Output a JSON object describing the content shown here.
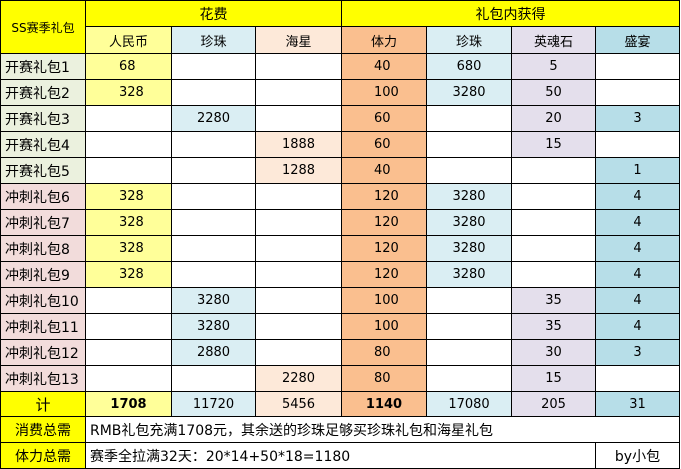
{
  "sheet": {
    "corner_label": "SS赛季礼包",
    "groups": {
      "spend": "花费",
      "rewards": "礼包内获得"
    },
    "columns": [
      "人民币",
      "珍珠",
      "海星",
      "体力",
      "珍珠",
      "英魂石",
      "盛宴"
    ],
    "rows": [
      {
        "name": "开赛礼包1",
        "cells": [
          "68",
          "",
          "",
          "40",
          "680",
          "5",
          ""
        ]
      },
      {
        "name": "开赛礼包2",
        "cells": [
          "328",
          "",
          "",
          "100",
          "3280",
          "50",
          ""
        ]
      },
      {
        "name": "开赛礼包3",
        "cells": [
          "",
          "2280",
          "",
          "60",
          "",
          "20",
          "3"
        ]
      },
      {
        "name": "开赛礼包4",
        "cells": [
          "",
          "",
          "1888",
          "60",
          "",
          "15",
          ""
        ]
      },
      {
        "name": "开赛礼包5",
        "cells": [
          "",
          "",
          "1288",
          "40",
          "",
          "",
          "1"
        ]
      },
      {
        "name": "冲刺礼包6",
        "cells": [
          "328",
          "",
          "",
          "120",
          "3280",
          "",
          "4"
        ]
      },
      {
        "name": "冲刺礼包7",
        "cells": [
          "328",
          "",
          "",
          "120",
          "3280",
          "",
          "4"
        ]
      },
      {
        "name": "冲刺礼包8",
        "cells": [
          "328",
          "",
          "",
          "120",
          "3280",
          "",
          "4"
        ]
      },
      {
        "name": "冲刺礼包9",
        "cells": [
          "328",
          "",
          "",
          "120",
          "3280",
          "",
          "4"
        ]
      },
      {
        "name": "冲刺礼包10",
        "cells": [
          "",
          "3280",
          "",
          "100",
          "",
          "35",
          "4"
        ]
      },
      {
        "name": "冲刺礼包11",
        "cells": [
          "",
          "3280",
          "",
          "100",
          "",
          "35",
          "4"
        ]
      },
      {
        "name": "冲刺礼包12",
        "cells": [
          "",
          "2880",
          "",
          "80",
          "",
          "30",
          "3"
        ]
      },
      {
        "name": "冲刺礼包13",
        "cells": [
          "",
          "",
          "2280",
          "80",
          "",
          "15",
          ""
        ]
      }
    ],
    "total": {
      "label": "计",
      "cells": [
        "1708",
        "11720",
        "5456",
        "1140",
        "17080",
        "205",
        "31"
      ]
    },
    "notes": [
      {
        "label": "消费总需",
        "text": "RMB礼包充满1708元，其余送的珍珠足够买珍珠礼包和海星礼包",
        "extra": ""
      },
      {
        "label": "体力总需",
        "text": "赛季全拉满32天：20*14+50*18=1180",
        "extra": "by小包"
      }
    ]
  },
  "colors": {
    "header_yellow": "#ffff00",
    "yuan": "#ffff99",
    "pearl": "#daeef3",
    "starfish": "#fde9d9",
    "stamina": "#fabf8f",
    "stone": "#e4dfec",
    "feast": "#b7dee8",
    "name_green": "#ebf1de",
    "name_pink": "#f2dcdb",
    "white": "#ffffff"
  }
}
